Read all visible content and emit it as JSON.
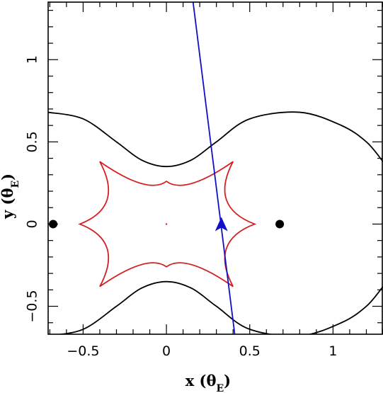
{
  "chart_data": {
    "type": "scatter",
    "title": "",
    "xlabel": "x (θE)",
    "ylabel": "y (θE)",
    "x_label": {
      "main": "x (θ",
      "sub": "E",
      "close": ")"
    },
    "y_label": {
      "main": "y (θ",
      "sub": "E",
      "close": ")"
    },
    "xlim": [
      -0.71,
      1.3
    ],
    "ylim": [
      -0.67,
      1.35
    ],
    "x_ticks": [
      {
        "value": -0.5,
        "label": "−0.5"
      },
      {
        "value": 0,
        "label": "0"
      },
      {
        "value": 0.5,
        "label": "0.5"
      },
      {
        "value": 1,
        "label": "1"
      }
    ],
    "y_ticks": [
      {
        "value": -0.5,
        "label": "−0.5"
      },
      {
        "value": 0,
        "label": "0"
      },
      {
        "value": 0.5,
        "label": "0.5"
      },
      {
        "value": 1,
        "label": "1"
      }
    ],
    "grid": false,
    "colors": {
      "critical_curve": "#000000",
      "caustic": "#d42020",
      "trajectory": "#1010c8",
      "lens": "#000000"
    },
    "lens_positions": [
      {
        "x": -0.68,
        "y": 0
      },
      {
        "x": 0.68,
        "y": 0
      }
    ],
    "trajectory": {
      "points": [
        [
          0.16,
          1.35
        ],
        [
          0.41,
          -0.67
        ]
      ],
      "arrow_at": {
        "x": 0.33,
        "y": 0.0
      }
    },
    "caustic": {
      "cusps": [
        [
          -0.52,
          0
        ],
        [
          -0.4,
          0.38
        ],
        [
          0,
          0.26
        ],
        [
          0.4,
          0.38
        ],
        [
          0.53,
          0
        ],
        [
          0.4,
          -0.38
        ],
        [
          0,
          -0.26
        ],
        [
          -0.4,
          -0.38
        ]
      ]
    },
    "critical_curve": {
      "upper_branch": [
        [
          -0.71,
          0.68
        ],
        [
          -0.5,
          0.64
        ],
        [
          -0.3,
          0.5
        ],
        [
          -0.15,
          0.39
        ],
        [
          0,
          0.35
        ],
        [
          0.15,
          0.39
        ],
        [
          0.3,
          0.5
        ],
        [
          0.5,
          0.64
        ],
        [
          0.8,
          0.68
        ],
        [
          1.05,
          0.6
        ],
        [
          1.2,
          0.5
        ],
        [
          1.3,
          0.38
        ]
      ],
      "lower_branch": [
        [
          -0.71,
          -0.68
        ],
        [
          -0.5,
          -0.64
        ],
        [
          -0.3,
          -0.5
        ],
        [
          -0.15,
          -0.39
        ],
        [
          0,
          -0.35
        ],
        [
          0.15,
          -0.39
        ],
        [
          0.3,
          -0.5
        ],
        [
          0.5,
          -0.64
        ],
        [
          0.8,
          -0.68
        ],
        [
          1.05,
          -0.6
        ],
        [
          1.2,
          -0.5
        ],
        [
          1.3,
          -0.38
        ]
      ]
    }
  }
}
